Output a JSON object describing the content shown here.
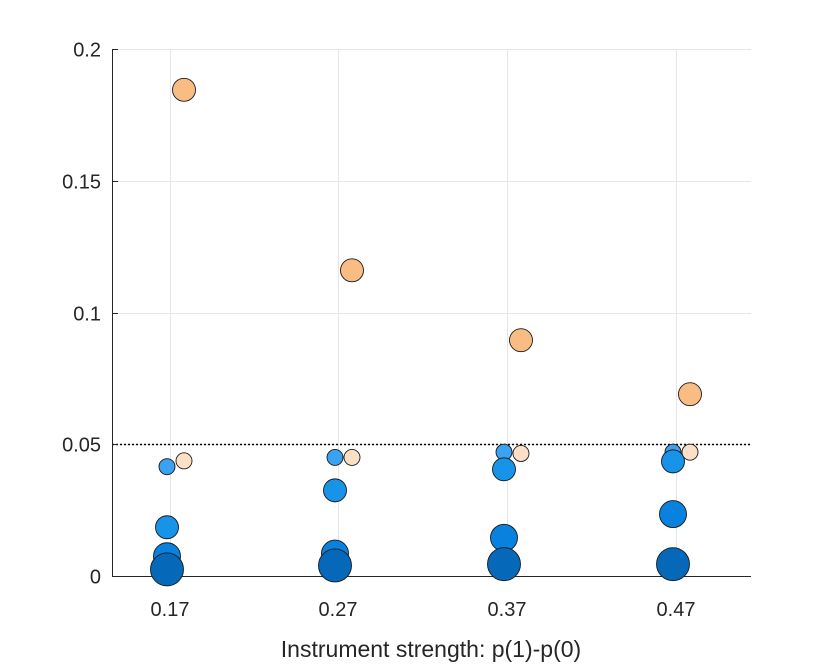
{
  "chart_data": {
    "type": "scatter",
    "title": "",
    "xlabel": "Instrument strength: p(1)-p(0)",
    "ylabel": "",
    "categories": [
      "0.17",
      "0.27",
      "0.37",
      "0.47"
    ],
    "ylim": [
      0,
      0.2
    ],
    "yticks": [
      0,
      0.05,
      0.1,
      0.15,
      0.2
    ],
    "ytick_labels": [
      "0",
      "0.05",
      "0.1",
      "0.15",
      "0.2"
    ],
    "grid": true,
    "reference_line": {
      "y": 0.05,
      "style": "dotted",
      "color": "#000000"
    },
    "series": [
      {
        "name": "blue-small",
        "color": "#3aa2f0",
        "size_rank": 1,
        "side": "left",
        "values": [
          0.0415,
          0.045,
          0.047,
          0.047
        ]
      },
      {
        "name": "blue-medium",
        "color": "#1793e8",
        "size_rank": 2,
        "side": "left",
        "values": [
          0.0185,
          0.0325,
          0.0405,
          0.0435
        ]
      },
      {
        "name": "blue-large",
        "color": "#0982df",
        "size_rank": 3,
        "side": "left",
        "values": [
          0.0075,
          0.0085,
          0.0145,
          0.0235
        ]
      },
      {
        "name": "blue-xlarge",
        "color": "#0568b8",
        "size_rank": 4,
        "side": "left",
        "values": [
          0.0025,
          0.004,
          0.0045,
          0.0045
        ]
      },
      {
        "name": "peach-small",
        "color": "#fbe0c6",
        "size_rank": 1,
        "side": "right",
        "values": [
          0.0437,
          0.045,
          0.0465,
          0.047
        ]
      },
      {
        "name": "orange-large",
        "color": "#f9bd84",
        "size_rank": 2,
        "side": "right",
        "values": [
          0.1845,
          0.116,
          0.0895,
          0.069
        ]
      }
    ]
  }
}
